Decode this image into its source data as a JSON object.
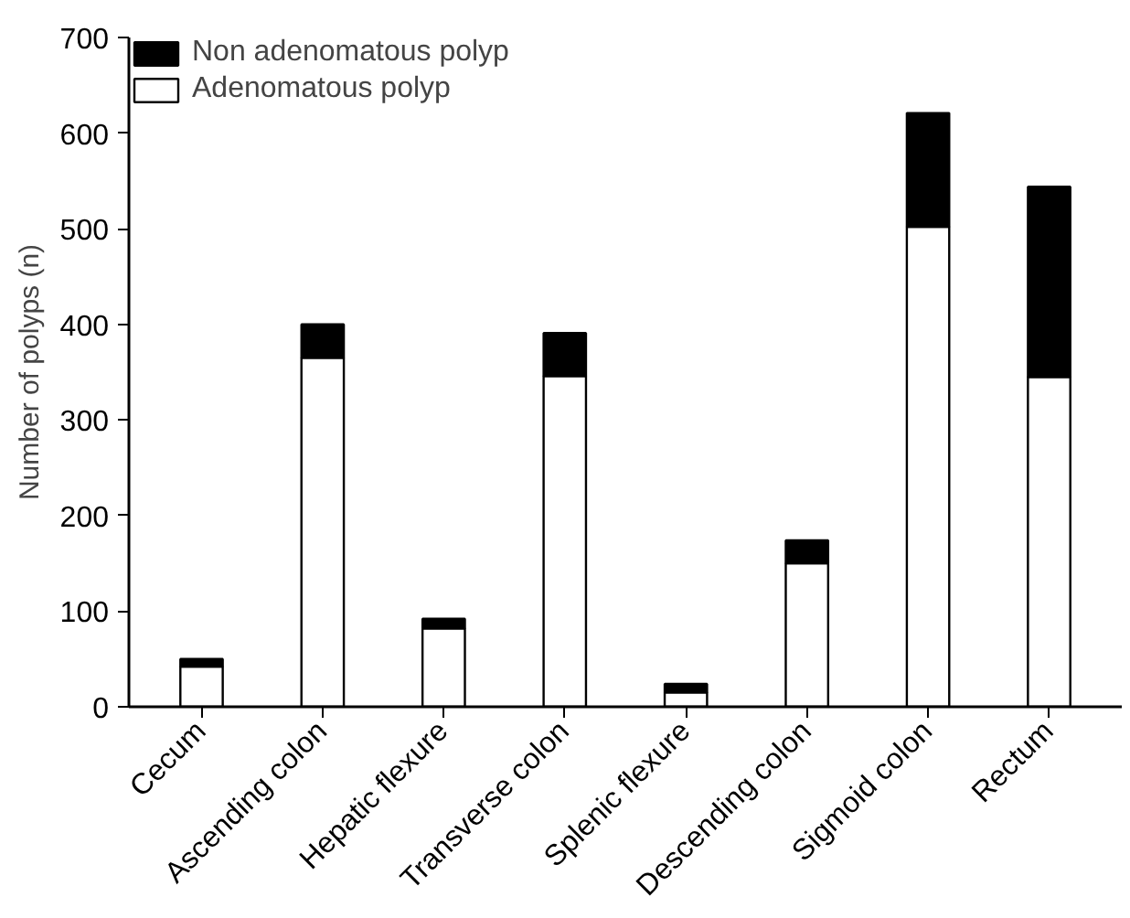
{
  "chart_data": {
    "type": "bar",
    "stacked": true,
    "ylabel": "Number of polyps (n)",
    "categories": [
      "Cecum",
      "Ascending colon",
      "Hepatic flexure",
      "Transverse colon",
      "Splenic flexure",
      "Descending colon",
      "Sigmoid colon",
      "Rectum"
    ],
    "series": [
      {
        "name": "Adenomatous polyp",
        "color": "#ffffff",
        "values": [
          42,
          365,
          82,
          346,
          15,
          150,
          502,
          345
        ]
      },
      {
        "name": "Non adenomatous polyp",
        "color": "#000000",
        "values": [
          8,
          35,
          10,
          45,
          9,
          24,
          119,
          199
        ]
      }
    ],
    "ylim": [
      0,
      700
    ],
    "yticks": [
      0,
      100,
      200,
      300,
      400,
      500,
      600,
      700
    ],
    "grid": false,
    "legend": "top left"
  }
}
